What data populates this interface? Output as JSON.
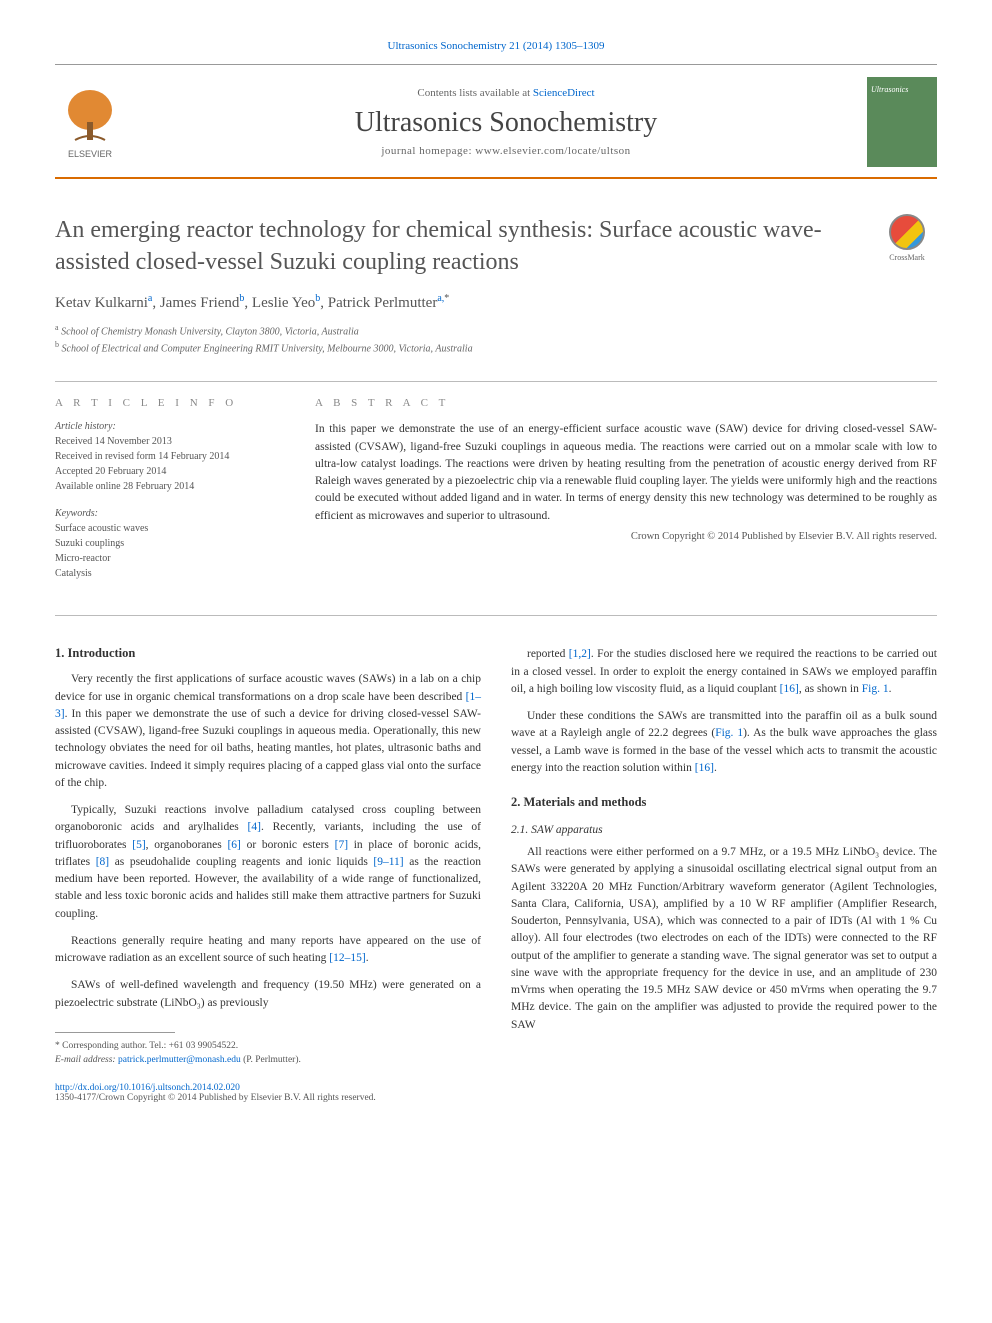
{
  "citation": "Ultrasonics Sonochemistry 21 (2014) 1305–1309",
  "header": {
    "contents_prefix": "Contents lists available at ",
    "contents_link": "ScienceDirect",
    "journal": "Ultrasonics Sonochemistry",
    "homepage_prefix": "journal homepage: ",
    "homepage_url": "www.elsevier.com/locate/ultson",
    "elsevier_label": "ELSEVIER",
    "cover_label": "Ultrasonics"
  },
  "crossmark_label": "CrossMark",
  "title": "An emerging reactor technology for chemical synthesis: Surface acoustic wave-assisted closed-vessel Suzuki coupling reactions",
  "authors": [
    {
      "name": "Ketav Kulkarni",
      "sup": "a"
    },
    {
      "name": "James Friend",
      "sup": "b"
    },
    {
      "name": "Leslie Yeo",
      "sup": "b"
    },
    {
      "name": "Patrick Perlmutter",
      "sup": "a,*"
    }
  ],
  "affiliations": [
    {
      "sup": "a",
      "text": "School of Chemistry Monash University, Clayton 3800, Victoria, Australia"
    },
    {
      "sup": "b",
      "text": "School of Electrical and Computer Engineering RMIT University, Melbourne 3000, Victoria, Australia"
    }
  ],
  "article_info": {
    "heading": "A R T I C L E   I N F O",
    "history_head": "Article history:",
    "history": [
      "Received 14 November 2013",
      "Received in revised form 14 February 2014",
      "Accepted 20 February 2014",
      "Available online 28 February 2014"
    ],
    "keywords_head": "Keywords:",
    "keywords": [
      "Surface acoustic waves",
      "Suzuki couplings",
      "Micro-reactor",
      "Catalysis"
    ]
  },
  "abstract": {
    "heading": "A B S T R A C T",
    "text": "In this paper we demonstrate the use of an energy-efficient surface acoustic wave (SAW) device for driving closed-vessel SAW-assisted (CVSAW), ligand-free Suzuki couplings in aqueous media. The reactions were carried out on a mmolar scale with low to ultra-low catalyst loadings. The reactions were driven by heating resulting from the penetration of acoustic energy derived from RF Raleigh waves generated by a piezoelectric chip via a renewable fluid coupling layer. The yields were uniformly high and the reactions could be executed without added ligand and in water. In terms of energy density this new technology was determined to be roughly as efficient as microwaves and superior to ultrasound.",
    "copyright": "Crown Copyright © 2014 Published by Elsevier B.V. All rights reserved."
  },
  "sections": {
    "intro_heading": "1. Introduction",
    "intro_paras": [
      "Very recently the first applications of surface acoustic waves (SAWs) in a lab on a chip device for use in organic chemical transformations on a drop scale have been described [1–3]. In this paper we demonstrate the use of such a device for driving closed-vessel SAW-assisted (CVSAW), ligand-free Suzuki couplings in aqueous media. Operationally, this new technology obviates the need for oil baths, heating mantles, hot plates, ultrasonic baths and microwave cavities. Indeed it simply requires placing of a capped glass vial onto the surface of the chip.",
      "Typically, Suzuki reactions involve palladium catalysed cross coupling between organoboronic acids and arylhalides [4]. Recently, variants, including the use of trifluoroborates [5], organoboranes [6] or boronic esters [7] in place of boronic acids, triflates [8] as pseudohalide coupling reagents and ionic liquids [9–11] as the reaction medium have been reported. However, the availability of a wide range of functionalized, stable and less toxic boronic acids and halides still make them attractive partners for Suzuki coupling.",
      "Reactions generally require heating and many reports have appeared on the use of microwave radiation as an excellent source of such heating [12–15].",
      "SAWs of well-defined wavelength and frequency (19.50 MHz) were generated on a piezoelectric substrate (LiNbO₃) as previously"
    ],
    "col2_paras": [
      "reported [1,2]. For the studies disclosed here we required the reactions to be carried out in a closed vessel. In order to exploit the energy contained in SAWs we employed paraffin oil, a high boiling low viscosity fluid, as a liquid couplant [16], as shown in Fig. 1.",
      "Under these conditions the SAWs are transmitted into the paraffin oil as a bulk sound wave at a Rayleigh angle of 22.2 degrees (Fig. 1). As the bulk wave approaches the glass vessel, a Lamb wave is formed in the base of the vessel which acts to transmit the acoustic energy into the reaction solution within [16]."
    ],
    "methods_heading": "2. Materials and methods",
    "saw_heading": "2.1. SAW apparatus",
    "saw_para": "All reactions were either performed on a 9.7 MHz, or a 19.5 MHz LiNbO₃ device. The SAWs were generated by applying a sinusoidal oscillating electrical signal output from an Agilent 33220A 20 MHz Function/Arbitrary waveform generator (Agilent Technologies, Santa Clara, California, USA), amplified by a 10 W RF amplifier (Amplifier Research, Souderton, Pennsylvania, USA), which was connected to a pair of IDTs (Al with 1 % Cu alloy). All four electrodes (two electrodes on each of the IDTs) were connected to the RF output of the amplifier to generate a standing wave. The signal generator was set to output a sine wave with the appropriate frequency for the device in use, and an amplitude of 230 mVrms when operating the 19.5 MHz SAW device or 450 mVrms when operating the 9.7 MHz device. The gain on the amplifier was adjusted to provide the required power to the SAW"
  },
  "footnote": {
    "corr": "* Corresponding author. Tel.: +61 03 99054522.",
    "email_label": "E-mail address:",
    "email": "patrick.perlmutter@monash.edu",
    "email_name": "(P. Perlmutter)."
  },
  "footer": {
    "doi": "http://dx.doi.org/10.1016/j.ultsonch.2014.02.020",
    "issn": "1350-4177/Crown Copyright © 2014 Published by Elsevier B.V. All rights reserved."
  },
  "colors": {
    "link": "#0066cc",
    "orange_rule": "#d96b00",
    "grey_text": "#555555"
  }
}
